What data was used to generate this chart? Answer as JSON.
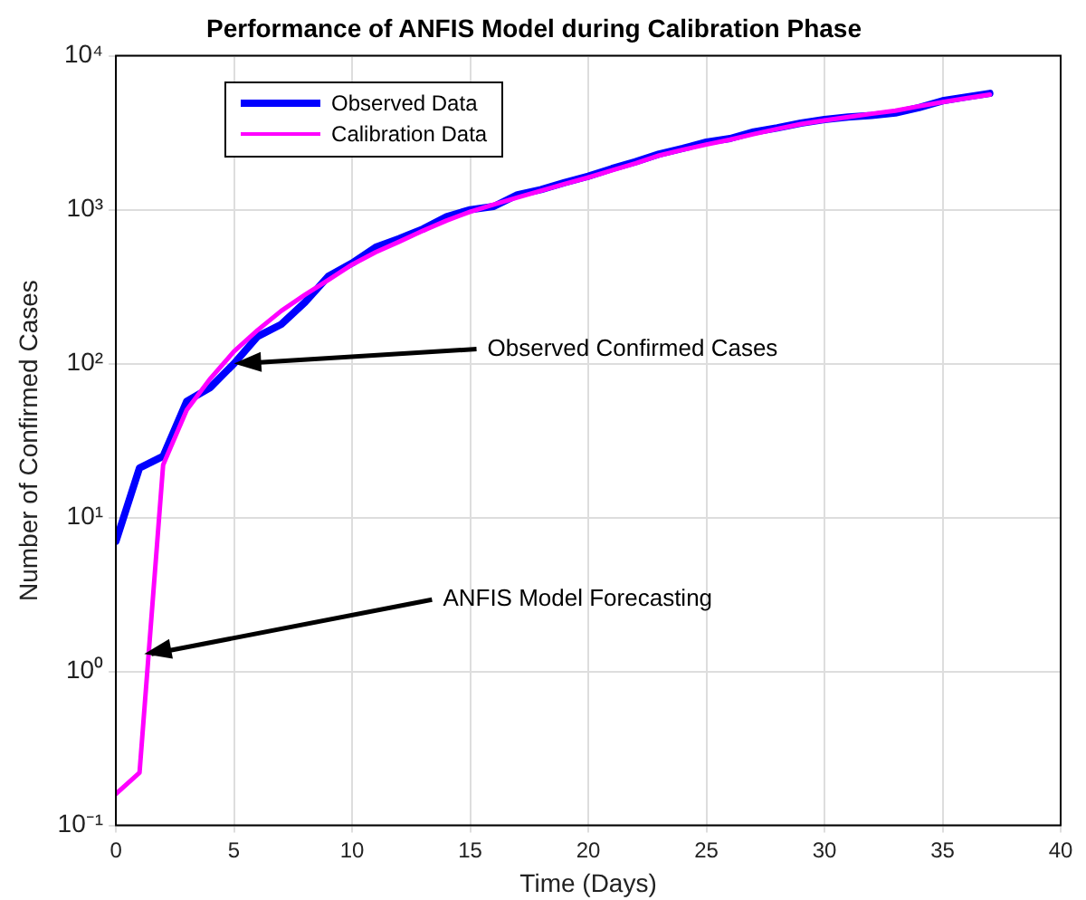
{
  "chart_data": {
    "type": "line",
    "title": "Performance of ANFIS Model during Calibration Phase",
    "xlabel": "Time (Days)",
    "ylabel": "Number of Confirmed Cases",
    "x": [
      0,
      1,
      2,
      3,
      4,
      5,
      6,
      7,
      8,
      9,
      10,
      11,
      12,
      13,
      14,
      15,
      16,
      17,
      18,
      19,
      20,
      21,
      22,
      23,
      24,
      25,
      26,
      27,
      28,
      29,
      30,
      31,
      32,
      33,
      34,
      35,
      36,
      37
    ],
    "series": [
      {
        "name": "Observed Data",
        "color": "#0000ff",
        "values": [
          7,
          21,
          25,
          57,
          70,
          100,
          150,
          180,
          250,
          370,
          450,
          570,
          650,
          750,
          900,
          1000,
          1050,
          1250,
          1350,
          1500,
          1650,
          1850,
          2050,
          2300,
          2500,
          2750,
          2900,
          3200,
          3400,
          3650,
          3850,
          4000,
          4100,
          4250,
          4600,
          5100,
          5400,
          5700
        ]
      },
      {
        "name": "Calibration Data",
        "color": "#ff00ff",
        "values": [
          0.16,
          0.22,
          22,
          50,
          80,
          120,
          165,
          220,
          280,
          350,
          440,
          530,
          620,
          730,
          850,
          970,
          1080,
          1200,
          1330,
          1470,
          1620,
          1800,
          2000,
          2250,
          2450,
          2650,
          2850,
          3100,
          3350,
          3600,
          3800,
          4000,
          4200,
          4400,
          4700,
          5000,
          5300,
          5600
        ]
      }
    ],
    "log": "y",
    "xlim": [
      0,
      40
    ],
    "xticks": [
      0,
      5,
      10,
      15,
      20,
      25,
      30,
      35,
      40
    ],
    "ylim": [
      0.1,
      10000
    ],
    "yticks": [
      {
        "value": 0.1,
        "label": "10⁻¹"
      },
      {
        "value": 1,
        "label": "10⁰"
      },
      {
        "value": 10,
        "label": "10¹"
      },
      {
        "value": 100,
        "label": "10²"
      },
      {
        "value": 1000,
        "label": "10³"
      },
      {
        "value": 10000,
        "label": "10⁴"
      }
    ],
    "grid": true,
    "legend": "top left",
    "line_style": "solid",
    "marker": "none",
    "annotations": [
      {
        "text": "Observed Confirmed Cases",
        "x": 5,
        "y": 100
      },
      {
        "text": "ANFIS Model Forecasting",
        "x": 1.2,
        "y": 1.3
      }
    ]
  }
}
